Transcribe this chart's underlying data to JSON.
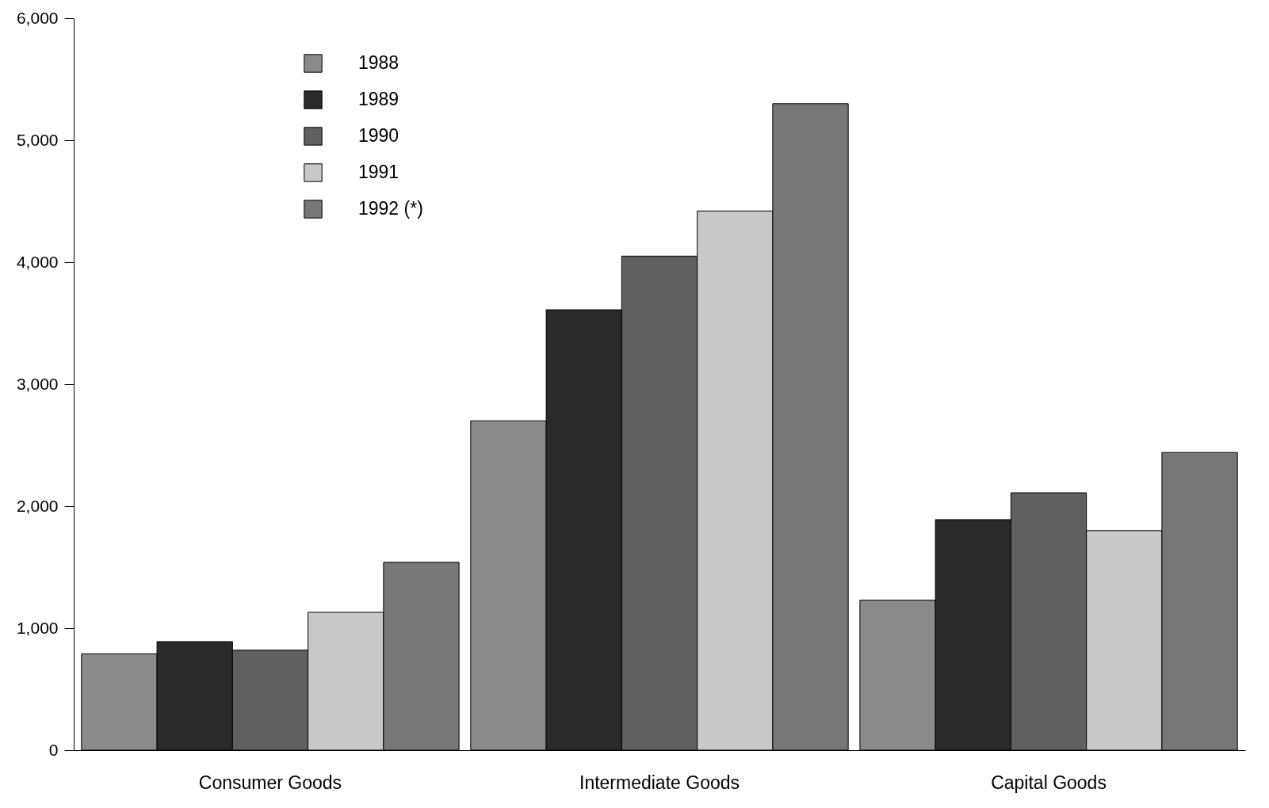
{
  "chart_data": {
    "type": "bar",
    "categories": [
      "Consumer Goods",
      "Intermediate Goods",
      "Capital Goods"
    ],
    "series": [
      {
        "name": "1988",
        "color": "#8a8a8a",
        "values": [
          790,
          2700,
          1230
        ]
      },
      {
        "name": "1989",
        "color": "#2a2a2a",
        "values": [
          890,
          3610,
          1890
        ]
      },
      {
        "name": "1990",
        "color": "#606060",
        "values": [
          820,
          4050,
          2110
        ]
      },
      {
        "name": "1991",
        "color": "#c8c8c8",
        "values": [
          1130,
          4420,
          1800
        ]
      },
      {
        "name": "1992 (*)",
        "color": "#777777",
        "values": [
          1540,
          5300,
          2440
        ]
      }
    ],
    "ylim": [
      0,
      6000
    ],
    "yticks": [
      {
        "value": 0,
        "label": "0"
      },
      {
        "value": 1000,
        "label": "1,000"
      },
      {
        "value": 2000,
        "label": "2,000"
      },
      {
        "value": 3000,
        "label": "3,000"
      },
      {
        "value": 4000,
        "label": "4,000"
      },
      {
        "value": 5000,
        "label": "5,000"
      },
      {
        "value": 6000,
        "label": "6,000"
      }
    ],
    "grid": false,
    "legend": "top left"
  }
}
